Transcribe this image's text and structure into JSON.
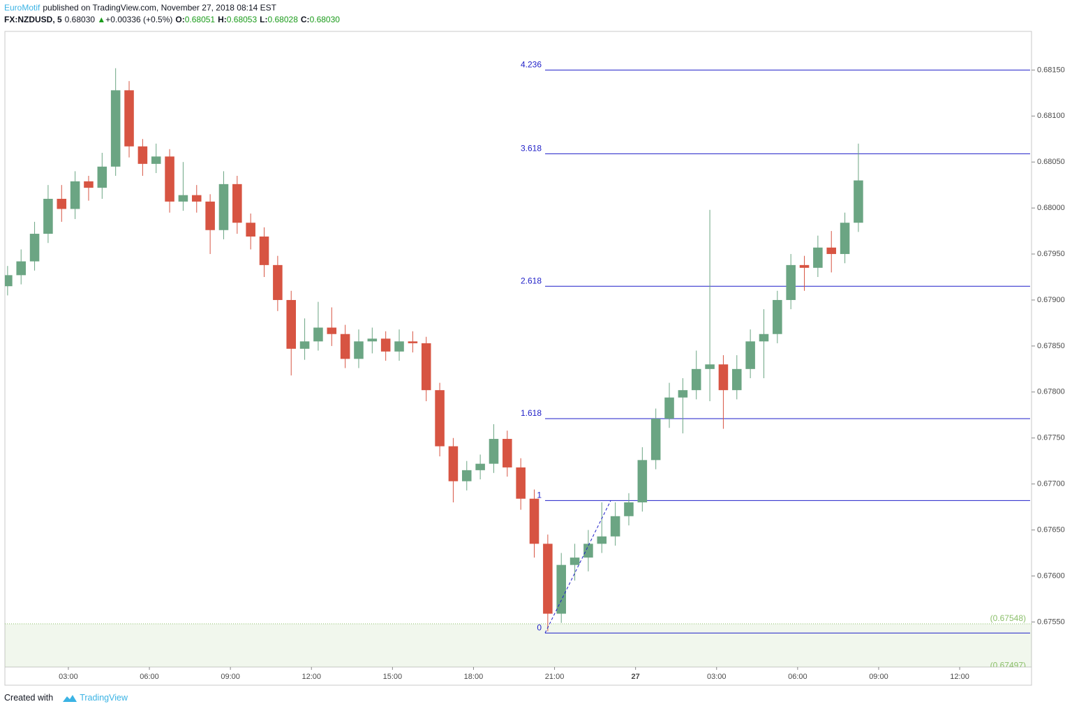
{
  "header": {
    "author": "EuroMotif",
    "published": "published on TradingView.com, November 27, 2018 08:14 EST",
    "symbol": "FX:NZDUSD, 5",
    "last": "0.68030",
    "arrow": "▲",
    "change": "+0.00336 (+0.5%)",
    "ohlc": [
      {
        "label": "O:",
        "value": "0.68051"
      },
      {
        "label": "H:",
        "value": "0.68053"
      },
      {
        "label": "L:",
        "value": "0.68028"
      },
      {
        "label": "C:",
        "value": "0.68030"
      }
    ]
  },
  "footer": {
    "created": "Created with",
    "brand": "TradingView"
  },
  "chart_data": {
    "type": "candlestick",
    "up_color": "#6ba583",
    "down_color": "#d75442",
    "x": [
      0.75,
      1.25,
      1.75,
      2.25,
      2.75,
      3.25,
      3.75,
      4.25,
      4.75,
      5.25,
      5.75,
      6.25,
      6.75,
      7.25,
      7.75,
      8.25,
      8.75,
      9.25,
      9.75,
      10.25,
      10.75,
      11.25,
      11.75,
      12.25,
      12.75,
      13.25,
      13.75,
      14.25,
      14.75,
      15.25,
      15.75,
      16.25,
      16.75,
      17.25,
      17.75,
      18.25,
      18.75,
      19.25,
      19.75,
      20.25,
      20.75,
      21.25,
      21.75,
      22.25,
      22.75,
      23.25,
      23.75,
      24.25,
      24.75,
      25.25,
      25.75,
      26.25,
      26.75,
      27.25,
      27.75,
      28.25,
      28.75,
      29.25,
      29.75,
      30.25,
      30.75,
      31.25,
      31.75,
      32.25
    ],
    "open": [
      0.67915,
      0.67927,
      0.67942,
      0.67972,
      0.6801,
      0.67999,
      0.68029,
      0.68022,
      0.68045,
      0.68128,
      0.68067,
      0.68048,
      0.68056,
      0.68007,
      0.68014,
      0.68007,
      0.67976,
      0.68026,
      0.67984,
      0.67969,
      0.67938,
      0.679,
      0.67847,
      0.67855,
      0.6787,
      0.67863,
      0.67836,
      0.67855,
      0.67858,
      0.67844,
      0.67855,
      0.67853,
      0.67802,
      0.67741,
      0.67703,
      0.67715,
      0.67722,
      0.67749,
      0.67718,
      0.67684,
      0.67635,
      0.67559,
      0.67612,
      0.6762,
      0.67635,
      0.67643,
      0.67665,
      0.6768,
      0.67726,
      0.67771,
      0.67794,
      0.67802,
      0.67825,
      0.6783,
      0.67802,
      0.67825,
      0.67855,
      0.67863,
      0.679,
      0.67938,
      0.67935,
      0.67957,
      0.6795,
      0.67984
    ],
    "high": [
      0.67937,
      0.67955,
      0.67985,
      0.68025,
      0.68025,
      0.6804,
      0.68035,
      0.6806,
      0.68152,
      0.68138,
      0.68075,
      0.6807,
      0.68064,
      0.6805,
      0.68025,
      0.68015,
      0.6804,
      0.68035,
      0.67994,
      0.67979,
      0.67948,
      0.6791,
      0.6788,
      0.67898,
      0.67892,
      0.67873,
      0.67868,
      0.6787,
      0.67866,
      0.67868,
      0.67866,
      0.6786,
      0.6781,
      0.6775,
      0.67725,
      0.67732,
      0.67765,
      0.67758,
      0.67728,
      0.67694,
      0.67645,
      0.67625,
      0.67635,
      0.6765,
      0.6768,
      0.6768,
      0.6769,
      0.6774,
      0.67782,
      0.6781,
      0.67815,
      0.67845,
      0.67998,
      0.6784,
      0.6784,
      0.67868,
      0.6789,
      0.6791,
      0.6795,
      0.67948,
      0.6797,
      0.67975,
      0.67995,
      0.6807
    ],
    "low": [
      0.67905,
      0.67917,
      0.67932,
      0.67962,
      0.67985,
      0.67988,
      0.68008,
      0.6801,
      0.68035,
      0.68055,
      0.68035,
      0.68038,
      0.67995,
      0.67997,
      0.67995,
      0.6795,
      0.67966,
      0.67972,
      0.67955,
      0.67925,
      0.67888,
      0.67818,
      0.67835,
      0.67845,
      0.6785,
      0.67826,
      0.67826,
      0.67842,
      0.67834,
      0.67834,
      0.67843,
      0.6779,
      0.6773,
      0.6768,
      0.67693,
      0.67705,
      0.67712,
      0.67708,
      0.67672,
      0.6762,
      0.6754,
      0.67549,
      0.67595,
      0.67605,
      0.67625,
      0.67633,
      0.67655,
      0.6767,
      0.67716,
      0.67761,
      0.67755,
      0.67792,
      0.6779,
      0.6776,
      0.67792,
      0.67815,
      0.67815,
      0.67853,
      0.6789,
      0.6791,
      0.67925,
      0.6793,
      0.6794,
      0.67974
    ],
    "close": [
      0.67927,
      0.67942,
      0.67972,
      0.6801,
      0.67999,
      0.68029,
      0.68022,
      0.68045,
      0.68128,
      0.68067,
      0.68048,
      0.68056,
      0.68007,
      0.68014,
      0.68007,
      0.67976,
      0.68026,
      0.67984,
      0.67969,
      0.67938,
      0.679,
      0.67847,
      0.67855,
      0.6787,
      0.67863,
      0.67836,
      0.67855,
      0.67858,
      0.67844,
      0.67855,
      0.67853,
      0.67802,
      0.67741,
      0.67703,
      0.67715,
      0.67722,
      0.67749,
      0.67718,
      0.67684,
      0.67635,
      0.67559,
      0.67612,
      0.6762,
      0.67635,
      0.67643,
      0.67665,
      0.6768,
      0.67726,
      0.67771,
      0.67794,
      0.67802,
      0.67825,
      0.6783,
      0.67802,
      0.67825,
      0.67855,
      0.67863,
      0.679,
      0.67938,
      0.67935,
      0.67957,
      0.6795,
      0.67984,
      0.6803
    ],
    "xlim": [
      0.65,
      38.66
    ],
    "ylim": [
      0.67501,
      0.68192
    ],
    "grid": false,
    "xticks": [
      {
        "value": 3,
        "label": "03:00"
      },
      {
        "value": 6,
        "label": "06:00"
      },
      {
        "value": 9,
        "label": "09:00"
      },
      {
        "value": 12,
        "label": "12:00"
      },
      {
        "value": 15,
        "label": "15:00"
      },
      {
        "value": 18,
        "label": "18:00"
      },
      {
        "value": 21,
        "label": "21:00"
      },
      {
        "value": 24,
        "label": "27"
      },
      {
        "value": 27,
        "label": "03:00"
      },
      {
        "value": 30,
        "label": "06:00"
      },
      {
        "value": 33,
        "label": "09:00"
      },
      {
        "value": 36,
        "label": "12:00"
      }
    ],
    "yticks": [
      {
        "value": 0.6755,
        "label": "0.67550"
      },
      {
        "value": 0.676,
        "label": "0.67600"
      },
      {
        "value": 0.6765,
        "label": "0.67650"
      },
      {
        "value": 0.677,
        "label": "0.67700"
      },
      {
        "value": 0.6775,
        "label": "0.67750"
      },
      {
        "value": 0.678,
        "label": "0.67800"
      },
      {
        "value": 0.6785,
        "label": "0.67850"
      },
      {
        "value": 0.679,
        "label": "0.67900"
      },
      {
        "value": 0.6795,
        "label": "0.67950"
      },
      {
        "value": 0.68,
        "label": "0.68000"
      },
      {
        "value": 0.6805,
        "label": "0.68050"
      },
      {
        "value": 0.681,
        "label": "0.68100"
      },
      {
        "value": 0.6815,
        "label": "0.68150"
      }
    ],
    "fib": {
      "color": "#1e1ec8",
      "x_start": 20.65,
      "levels": [
        {
          "ratio": 0,
          "price": 0.67538
        },
        {
          "ratio": 1,
          "price": 0.67682
        },
        {
          "ratio": 1.618,
          "price": 0.67771
        },
        {
          "ratio": 2.618,
          "price": 0.67915
        },
        {
          "ratio": 3.618,
          "price": 0.68059
        },
        {
          "ratio": 4.236,
          "price": 0.6815
        }
      ]
    },
    "trend_line": {
      "x": [
        20.65,
        23.08
      ],
      "y": [
        0.67538,
        0.67682
      ]
    },
    "zone": [
      {
        "value": 0.67548,
        "label": "(0.67548)"
      },
      {
        "value": 0.67497,
        "label": "(0.67497)"
      }
    ],
    "zone_color": "#8bbf6a"
  }
}
